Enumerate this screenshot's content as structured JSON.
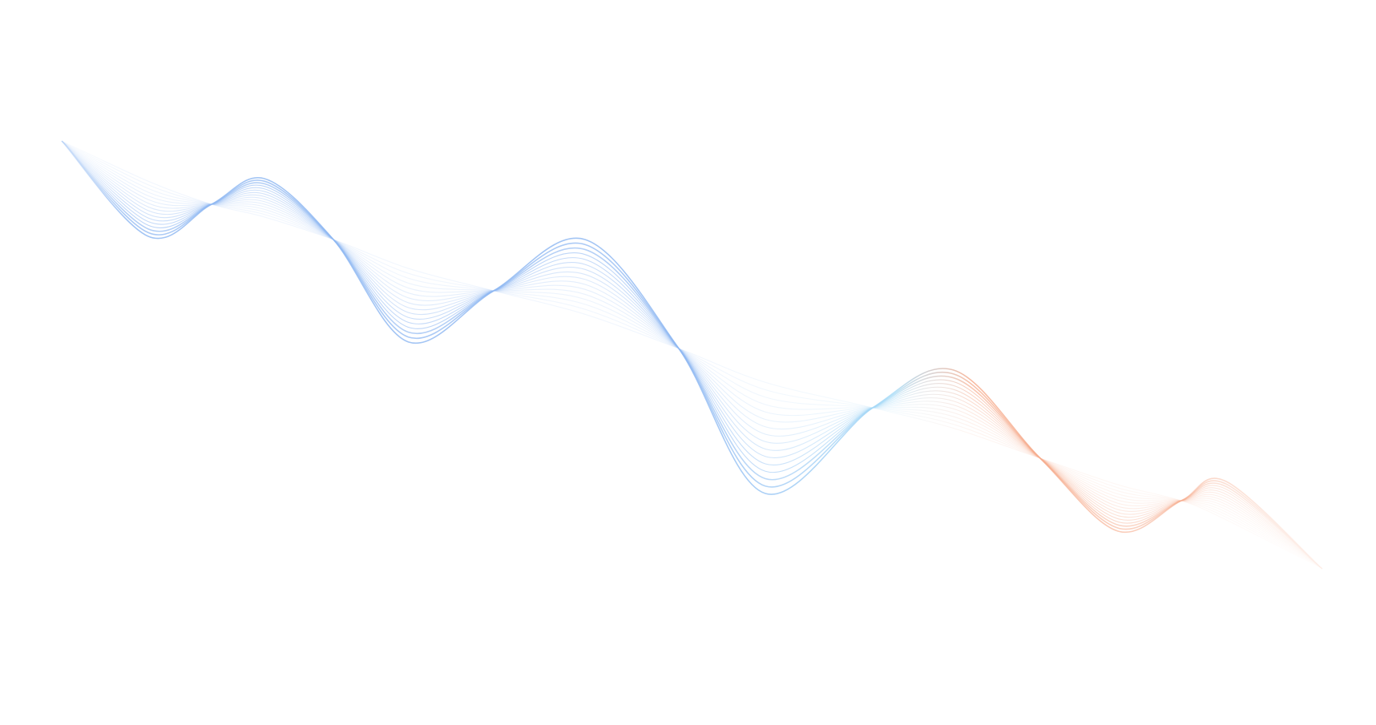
{
  "graphic": {
    "kind": "abstract flowing line wave",
    "colors": {
      "background": "#ffffff",
      "blue": "#8fb8f2",
      "cyan": "#a9dcf7",
      "orange": "#f6ab8c"
    },
    "line_count": 16
  }
}
